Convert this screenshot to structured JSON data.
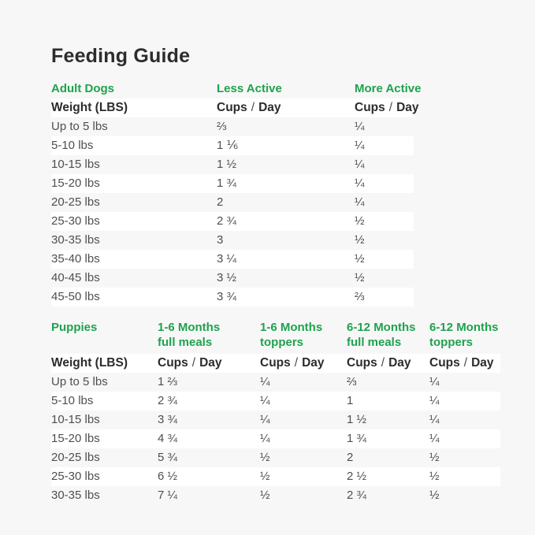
{
  "page": {
    "title": "Feeding Guide",
    "background_color": "#f7f7f7",
    "accent_green": "#1fa24e",
    "stripe_white": "#ffffff",
    "text_dark": "#2d2d2d"
  },
  "chart_data": [
    {
      "type": "table",
      "section_label": "Adult Dogs",
      "group_headers": [
        "Less Active",
        "More Active"
      ],
      "weight_header": "Weight (LBS)",
      "unit_cups": "Cups",
      "unit_sep": "/",
      "unit_day": "Day",
      "rows": [
        {
          "weight": "Up to 5 lbs",
          "values": [
            "⅔",
            "¼"
          ]
        },
        {
          "weight": "5-10 lbs",
          "values": [
            "1 ⅙",
            "¼"
          ]
        },
        {
          "weight": "10-15 lbs",
          "values": [
            "1 ½",
            "¼"
          ]
        },
        {
          "weight": "15-20 lbs",
          "values": [
            "1 ¾",
            "¼"
          ]
        },
        {
          "weight": "20-25 lbs",
          "values": [
            "2",
            "¼"
          ]
        },
        {
          "weight": "25-30 lbs",
          "values": [
            "2 ¾",
            "½"
          ]
        },
        {
          "weight": "30-35 lbs",
          "values": [
            "3",
            "½"
          ]
        },
        {
          "weight": "35-40 lbs",
          "values": [
            "3 ¼",
            "½"
          ]
        },
        {
          "weight": "40-45 lbs",
          "values": [
            "3 ½",
            "½"
          ]
        },
        {
          "weight": "45-50 lbs",
          "values": [
            "3 ¾",
            "⅔"
          ]
        }
      ]
    },
    {
      "type": "table",
      "section_label": "Puppies",
      "group_headers": [
        {
          "line1": "1-6 Months",
          "line2": "full meals"
        },
        {
          "line1": "1-6 Months",
          "line2": "toppers"
        },
        {
          "line1": "6-12 Months",
          "line2": "full meals"
        },
        {
          "line1": "6-12 Months",
          "line2": "toppers"
        }
      ],
      "weight_header": "Weight (LBS)",
      "unit_cups": "Cups",
      "unit_sep": "/",
      "unit_day": "Day",
      "rows": [
        {
          "weight": "Up to 5 lbs",
          "values": [
            "1 ⅔",
            "¼",
            "⅔",
            "¼"
          ]
        },
        {
          "weight": "5-10 lbs",
          "values": [
            "2 ¾",
            "¼",
            "1",
            "¼"
          ]
        },
        {
          "weight": "10-15 lbs",
          "values": [
            "3 ¾",
            "¼",
            "1 ½",
            "¼"
          ]
        },
        {
          "weight": "15-20 lbs",
          "values": [
            "4 ¾",
            "¼",
            "1 ¾",
            "¼"
          ]
        },
        {
          "weight": "20-25 lbs",
          "values": [
            "5 ¾",
            "½",
            "2",
            "½"
          ]
        },
        {
          "weight": "25-30 lbs",
          "values": [
            "6 ½",
            "½",
            "2 ½",
            "½"
          ]
        },
        {
          "weight": "30-35 lbs",
          "values": [
            "7 ¼",
            "½",
            "2 ¾",
            "½"
          ]
        }
      ]
    }
  ]
}
